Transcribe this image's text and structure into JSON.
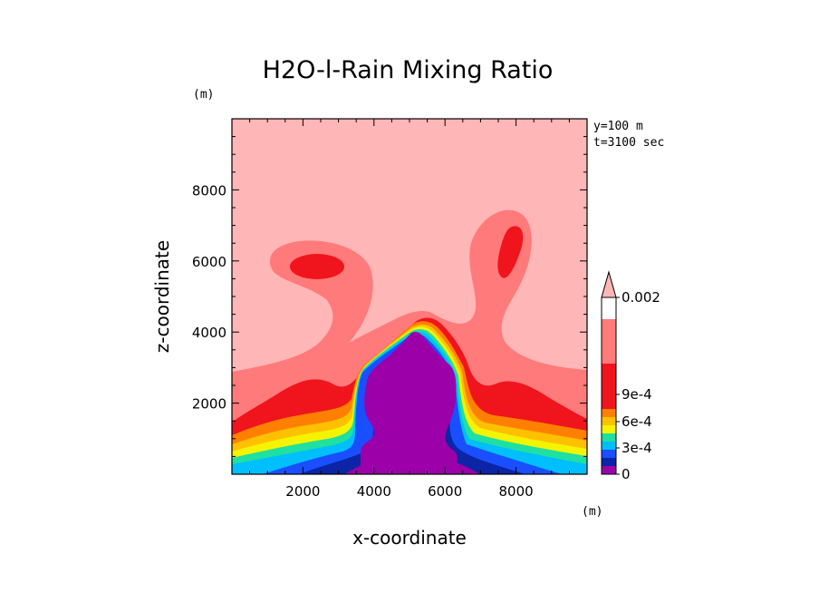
{
  "chart_data": {
    "type": "heatmap",
    "title": "H2O-l-Rain Mixing Ratio",
    "xlabel": "x-coordinate",
    "ylabel": "z-coordinate",
    "x_unit": "(m)",
    "y_unit": "(m)",
    "annotations": [
      "y=100 m",
      "t=3100 sec"
    ],
    "xlim": [
      0,
      10000
    ],
    "ylim": [
      0,
      10000
    ],
    "x_ticks": [
      2000,
      4000,
      6000,
      8000
    ],
    "y_ticks": [
      2000,
      4000,
      6000,
      8000
    ],
    "x_tick_labels": [
      "2000",
      "4000",
      "6000",
      "8000"
    ],
    "y_tick_labels": [
      "2000",
      "4000",
      "6000",
      "8000"
    ],
    "colorbar": {
      "tick_labels": [
        "0.002",
        "9e-4",
        "6e-4",
        "3e-4",
        "0"
      ],
      "levels": [
        "0",
        "1.5e-4",
        "3e-4",
        "4.5e-4",
        "6e-4",
        "7.5e-4",
        "9e-4",
        "1.05e-3",
        "1.5e-3",
        "0.002"
      ],
      "colors": [
        "#9b00a9",
        "#0b25a6",
        "#1a4fff",
        "#00bfff",
        "#1fe0a0",
        "#f4f400",
        "#ffc000",
        "#ff8000",
        "#f0141c",
        "#ff7a7a",
        "#ffb6b6"
      ]
    }
  }
}
